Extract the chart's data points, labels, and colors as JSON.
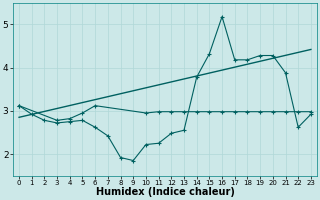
{
  "xlabel": "Humidex (Indice chaleur)",
  "bg_color": "#cce8e8",
  "line_color": "#006060",
  "xlim": [
    -0.5,
    23.5
  ],
  "ylim": [
    1.5,
    5.5
  ],
  "yticks": [
    2,
    3,
    4,
    5
  ],
  "xticks": [
    0,
    1,
    2,
    3,
    4,
    5,
    6,
    7,
    8,
    9,
    10,
    11,
    12,
    13,
    14,
    15,
    16,
    17,
    18,
    19,
    20,
    21,
    22,
    23
  ],
  "series1_x": [
    0,
    1,
    2,
    3,
    4,
    5,
    6,
    7,
    8,
    9,
    10,
    11,
    12,
    13,
    14,
    15,
    16,
    17,
    18,
    19,
    20,
    21,
    22,
    23
  ],
  "series1_y": [
    3.12,
    2.92,
    2.78,
    2.72,
    2.75,
    2.78,
    2.62,
    2.42,
    1.92,
    1.85,
    2.22,
    2.25,
    2.48,
    2.55,
    3.78,
    4.32,
    5.18,
    4.18,
    4.18,
    4.28,
    4.28,
    3.88,
    2.62,
    2.92
  ],
  "series2_x": [
    0,
    3,
    4,
    5,
    6,
    10,
    11,
    12,
    13,
    14,
    15,
    16,
    17,
    18,
    19,
    20,
    21,
    22,
    23
  ],
  "series2_y": [
    3.12,
    2.78,
    2.82,
    2.95,
    3.12,
    2.95,
    2.98,
    2.98,
    2.98,
    2.98,
    2.98,
    2.98,
    2.98,
    2.98,
    2.98,
    2.98,
    2.98,
    2.98,
    2.98
  ],
  "series3_x": [
    0,
    23
  ],
  "series3_y": [
    2.85,
    4.42
  ],
  "grid_color": "#b0d8d8",
  "xlabel_fontsize": 7,
  "tick_fontsize": 5,
  "ytick_fontsize": 6.5
}
